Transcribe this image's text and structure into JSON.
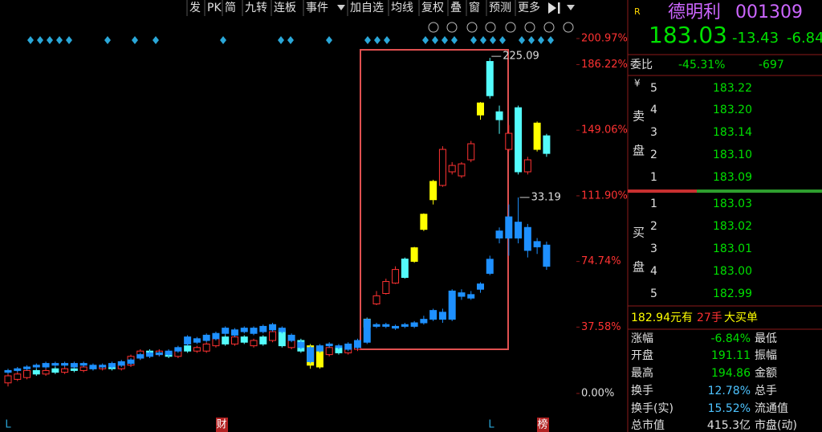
{
  "toolbar": [
    "发",
    "PK",
    "简",
    "九转",
    "连板",
    "事件",
    "加自选",
    "均线",
    "复权",
    "叠",
    "窗",
    "预测",
    "更多"
  ],
  "chart_data": {
    "type": "candlestick",
    "ylim": [
      0,
      200.97
    ],
    "yticks": [
      {
        "value": 200.97,
        "label": "200.97%"
      },
      {
        "value": 186.22,
        "label": "186.22%"
      },
      {
        "value": 149.06,
        "label": "149.06%"
      },
      {
        "value": 111.9,
        "label": "111.90%"
      },
      {
        "value": 74.74,
        "label": "74.74%"
      },
      {
        "value": 37.58,
        "label": "37.58%"
      },
      {
        "value": 0,
        "label": "0.00%"
      }
    ],
    "annotations": [
      {
        "text": "225.09",
        "value": 225.09
      },
      {
        "text": "33.19",
        "value": 33.19
      }
    ],
    "markers": [
      "L",
      "财",
      "L",
      "榜"
    ],
    "series": [
      {
        "candles": [
          {
            "o": 6,
            "c": 10,
            "h": 11,
            "l": 4,
            "color": "#ff3232"
          },
          {
            "o": 8,
            "c": 11,
            "h": 12,
            "l": 7,
            "color": "#ff3232"
          },
          {
            "o": 9,
            "c": 13,
            "h": 14,
            "l": 8,
            "color": "#ff3232"
          },
          {
            "o": 13,
            "c": 11,
            "h": 14,
            "l": 10,
            "color": "#54fcfc"
          },
          {
            "o": 11,
            "c": 13,
            "h": 14,
            "l": 10,
            "color": "#ff3232"
          },
          {
            "o": 14,
            "c": 12,
            "h": 15,
            "l": 11,
            "color": "#54fcfc"
          },
          {
            "o": 12,
            "c": 14,
            "h": 15,
            "l": 11,
            "color": "#ff3232"
          },
          {
            "o": 14,
            "c": 13,
            "h": 15,
            "l": 12,
            "color": "#54fcfc"
          },
          {
            "o": 13,
            "c": 15,
            "h": 16,
            "l": 12,
            "color": "#ff3232"
          },
          {
            "o": 15,
            "c": 14,
            "h": 16,
            "l": 13,
            "color": "#54fcfc"
          },
          {
            "o": 14,
            "c": 15,
            "h": 16,
            "l": 13,
            "color": "#ff3232"
          },
          {
            "o": 16,
            "c": 14,
            "h": 17,
            "l": 13,
            "color": "#54fcfc"
          },
          {
            "o": 14,
            "c": 16,
            "h": 17,
            "l": 13,
            "color": "#ff3232"
          },
          {
            "o": 16,
            "c": 21,
            "h": 22,
            "l": 15,
            "color": "#ff3232"
          },
          {
            "o": 20,
            "c": 24,
            "h": 25,
            "l": 19,
            "color": "#ff3232"
          },
          {
            "o": 24,
            "c": 22,
            "h": 25,
            "l": 21,
            "color": "#54fcfc"
          },
          {
            "o": 22,
            "c": 24,
            "h": 25,
            "l": 21,
            "color": "#ff3232"
          },
          {
            "o": 23,
            "c": 21,
            "h": 24,
            "l": 20,
            "color": "#54fcfc"
          },
          {
            "o": 21,
            "c": 25,
            "h": 26,
            "l": 20,
            "color": "#ff3232"
          },
          {
            "o": 27,
            "c": 24,
            "h": 28,
            "l": 23,
            "color": "#54fcfc"
          },
          {
            "o": 24,
            "c": 26,
            "h": 27,
            "l": 23,
            "color": "#ff3232"
          },
          {
            "o": 24,
            "c": 28,
            "h": 29,
            "l": 23,
            "color": "#ff3232"
          },
          {
            "o": 27,
            "c": 31,
            "h": 32,
            "l": 26,
            "color": "#ff3232"
          },
          {
            "o": 32,
            "c": 28,
            "h": 33,
            "l": 27,
            "color": "#54fcfc"
          },
          {
            "o": 28,
            "c": 32,
            "h": 33,
            "l": 27,
            "color": "#ff3232"
          },
          {
            "o": 32,
            "c": 29,
            "h": 33,
            "l": 28,
            "color": "#54fcfc"
          },
          {
            "o": 27,
            "c": 30,
            "h": 31,
            "l": 26,
            "color": "#ff3232"
          },
          {
            "o": 32,
            "c": 28,
            "h": 33,
            "l": 27,
            "color": "#54fcfc"
          },
          {
            "o": 30,
            "c": 35,
            "h": 36,
            "l": 29,
            "color": "#ff3232"
          },
          {
            "o": 36,
            "c": 27,
            "h": 37,
            "l": 26,
            "color": "#54fcfc"
          },
          {
            "o": 26,
            "c": 30,
            "h": 31,
            "l": 25,
            "color": "#ff3232"
          },
          {
            "o": 30,
            "c": 24,
            "h": 31,
            "l": 23,
            "color": "#54fcfc"
          },
          {
            "o": 27,
            "c": 16,
            "h": 28,
            "l": 14,
            "color": "#ffff00"
          },
          {
            "o": 26,
            "c": 15,
            "h": 27,
            "l": 14,
            "color": "#ffff00"
          },
          {
            "o": 22,
            "c": 26,
            "h": 27,
            "l": 21,
            "color": "#ff3232"
          },
          {
            "o": 26,
            "c": 23,
            "h": 27,
            "l": 22,
            "color": "#54fcfc"
          },
          {
            "o": 23,
            "c": 26,
            "h": 27,
            "l": 22,
            "color": "#ff3232"
          },
          {
            "o": 25,
            "c": 28,
            "h": 30,
            "l": 24,
            "color": "#ff3232"
          },
          {
            "o": 42.1,
            "c": 37.6,
            "h": 43,
            "l": 37,
            "color": "#ffff00"
          },
          {
            "o": 50.7,
            "c": 55.3,
            "h": 58,
            "l": 50,
            "color": "#ff3232"
          },
          {
            "o": 56.6,
            "c": 63.4,
            "h": 65,
            "l": 56,
            "color": "#ff3232"
          },
          {
            "o": 62.5,
            "c": 70.2,
            "h": 72,
            "l": 62,
            "color": "#ff3232"
          },
          {
            "o": 76.1,
            "c": 65.7,
            "h": 77,
            "l": 65,
            "color": "#54fcfc"
          },
          {
            "o": 82.5,
            "c": 74.8,
            "h": 83,
            "l": 74,
            "color": "#ffff00"
          },
          {
            "o": 101.5,
            "c": 92.9,
            "h": 102,
            "l": 92,
            "color": "#ffff00"
          },
          {
            "o": 120.1,
            "c": 109.7,
            "h": 121,
            "l": 107,
            "color": "#ffff00"
          },
          {
            "o": 117.8,
            "c": 138.2,
            "h": 140,
            "l": 117,
            "color": "#ff3232"
          },
          {
            "o": 125.5,
            "c": 129.1,
            "h": 131,
            "l": 124,
            "color": "#ff3232"
          },
          {
            "o": 123.2,
            "c": 130,
            "h": 131,
            "l": 122,
            "color": "#ff3232"
          },
          {
            "o": 132.3,
            "c": 141.4,
            "h": 143,
            "l": 131,
            "color": "#ff3232"
          },
          {
            "o": 164.5,
            "c": 157.7,
            "h": 165,
            "l": 155,
            "color": "#ffff00"
          },
          {
            "o": 168.6,
            "c": 188,
            "h": 190,
            "l": 167,
            "color": "#54fcfc"
          },
          {
            "o": 159.5,
            "c": 155,
            "h": 163,
            "l": 147,
            "color": "#54fcfc"
          },
          {
            "o": 138.2,
            "c": 147.3,
            "h": 152,
            "l": 137,
            "color": "#ff3232"
          },
          {
            "o": 161.8,
            "c": 125.5,
            "h": 163,
            "l": 124,
            "color": "#54fcfc"
          },
          {
            "o": 125.5,
            "c": 132.3,
            "h": 134,
            "l": 124,
            "color": "#ff3232"
          },
          {
            "o": 153.1,
            "c": 138.2,
            "h": 154,
            "l": 137,
            "color": "#ffff00"
          },
          {
            "o": 145.9,
            "c": 135.9,
            "h": 147,
            "l": 134,
            "color": "#54fcfc"
          }
        ]
      },
      {
        "color": "#1e90ff",
        "candles": [
          {
            "o": 12,
            "c": 13,
            "h": 14,
            "l": 11
          },
          {
            "o": 13,
            "c": 14,
            "h": 15,
            "l": 12
          },
          {
            "o": 14,
            "c": 15,
            "h": 16,
            "l": 13
          },
          {
            "o": 15,
            "c": 16,
            "h": 17,
            "l": 14
          },
          {
            "o": 15,
            "c": 17,
            "h": 18,
            "l": 14
          },
          {
            "o": 16,
            "c": 17,
            "h": 18,
            "l": 15
          },
          {
            "o": 16,
            "c": 17,
            "h": 18,
            "l": 15
          },
          {
            "o": 15,
            "c": 17,
            "h": 18,
            "l": 14
          },
          {
            "o": 16,
            "c": 17,
            "h": 18,
            "l": 15
          },
          {
            "o": 14,
            "c": 16,
            "h": 17,
            "l": 13
          },
          {
            "o": 15,
            "c": 16,
            "h": 17,
            "l": 14
          },
          {
            "o": 15,
            "c": 17,
            "h": 18,
            "l": 14
          },
          {
            "o": 16,
            "c": 18,
            "h": 19,
            "l": 15
          },
          {
            "o": 17,
            "c": 19,
            "h": 20,
            "l": 16
          },
          {
            "o": 20,
            "c": 22,
            "h": 23,
            "l": 19
          },
          {
            "o": 21,
            "c": 23,
            "h": 24,
            "l": 20
          },
          {
            "o": 22,
            "c": 23,
            "h": 24,
            "l": 21
          },
          {
            "o": 22,
            "c": 24,
            "h": 25,
            "l": 21
          },
          {
            "o": 24,
            "c": 26,
            "h": 27,
            "l": 23
          },
          {
            "o": 28,
            "c": 32,
            "h": 33,
            "l": 27
          },
          {
            "o": 29,
            "c": 31,
            "h": 32,
            "l": 28
          },
          {
            "o": 30,
            "c": 33,
            "h": 34,
            "l": 29
          },
          {
            "o": 31,
            "c": 34,
            "h": 35,
            "l": 30
          },
          {
            "o": 34,
            "c": 37,
            "h": 38,
            "l": 33
          },
          {
            "o": 33,
            "c": 36,
            "h": 37,
            "l": 32
          },
          {
            "o": 35,
            "c": 37,
            "h": 38,
            "l": 34
          },
          {
            "o": 34,
            "c": 37,
            "h": 38,
            "l": 33
          },
          {
            "o": 35,
            "c": 38,
            "h": 39,
            "l": 34
          },
          {
            "o": 36,
            "c": 39,
            "h": 40,
            "l": 35
          },
          {
            "o": 35,
            "c": 37,
            "h": 38,
            "l": 34
          },
          {
            "o": 30,
            "c": 33,
            "h": 34,
            "l": 29
          },
          {
            "o": 26,
            "c": 29,
            "h": 30,
            "l": 25
          },
          {
            "o": 18,
            "c": 26,
            "h": 27,
            "l": 17
          },
          {
            "o": 24,
            "c": 27,
            "h": 28,
            "l": 23
          },
          {
            "o": 27,
            "c": 28,
            "h": 29,
            "l": 26
          },
          {
            "o": 26,
            "c": 27,
            "h": 28,
            "l": 25
          },
          {
            "o": 25,
            "c": 28,
            "h": 29,
            "l": 24
          },
          {
            "o": 26,
            "c": 30,
            "h": 31,
            "l": 25
          },
          {
            "o": 29,
            "c": 42,
            "h": 43,
            "l": 28
          },
          {
            "o": 38,
            "c": 39,
            "h": 40,
            "l": 37
          },
          {
            "o": 38,
            "c": 39,
            "h": 40,
            "l": 37
          },
          {
            "o": 37,
            "c": 38,
            "h": 39,
            "l": 36
          },
          {
            "o": 38,
            "c": 39,
            "h": 40,
            "l": 37
          },
          {
            "o": 38,
            "c": 40,
            "h": 41,
            "l": 37
          },
          {
            "o": 40,
            "c": 42,
            "h": 44,
            "l": 39
          },
          {
            "o": 42,
            "c": 47,
            "h": 48,
            "l": 41
          },
          {
            "o": 42,
            "c": 46,
            "h": 48,
            "l": 40
          },
          {
            "o": 42,
            "c": 58,
            "h": 59,
            "l": 41
          },
          {
            "o": 55,
            "c": 57,
            "h": 59,
            "l": 53
          },
          {
            "o": 54,
            "c": 56,
            "h": 58,
            "l": 53
          },
          {
            "o": 59,
            "c": 62,
            "h": 63,
            "l": 57
          },
          {
            "o": 68,
            "c": 76,
            "h": 78,
            "l": 67
          },
          {
            "o": 88,
            "c": 92,
            "h": 94,
            "l": 85
          },
          {
            "o": 88,
            "c": 100,
            "h": 107,
            "l": 78
          },
          {
            "o": 88,
            "c": 97,
            "h": 111,
            "l": 85
          },
          {
            "o": 94,
            "c": 81,
            "h": 96,
            "l": 77
          },
          {
            "o": 83,
            "c": 86,
            "h": 88,
            "l": 79
          },
          {
            "o": 72,
            "c": 84,
            "h": 86,
            "l": 70
          }
        ]
      }
    ]
  },
  "quote": {
    "flag": "R",
    "name": "德明利",
    "code": "001309",
    "price": "183.03",
    "change": "-13.43",
    "pct": "-6.84",
    "ratio_label": "委比",
    "ratio": "-45.31%",
    "ratio_diff": "-697",
    "currency": "¥",
    "sell_label": [
      "卖",
      "盘"
    ],
    "buy_label": [
      "买",
      "盘"
    ],
    "sell": [
      [
        "5",
        "183.22"
      ],
      [
        "4",
        "183.20"
      ],
      [
        "3",
        "183.14"
      ],
      [
        "2",
        "183.10"
      ],
      [
        "1",
        "183.09"
      ]
    ],
    "buy": [
      [
        "1",
        "183.03"
      ],
      [
        "2",
        "183.02"
      ],
      [
        "3",
        "183.01"
      ],
      [
        "4",
        "183.00"
      ],
      [
        "5",
        "182.99"
      ]
    ],
    "big_order": [
      "182.94元有",
      "27手",
      "大买单"
    ],
    "stats": [
      [
        "涨幅",
        "-6.84%",
        "最低"
      ],
      [
        "开盘",
        "191.11",
        "振幅"
      ],
      [
        "最高",
        "194.86",
        "金额"
      ],
      [
        "换手",
        "12.78%",
        "总手"
      ],
      [
        "换手(实)",
        "15.52%",
        "流通值"
      ],
      [
        "总市值",
        "415.3亿",
        "市盘(动)"
      ]
    ]
  }
}
